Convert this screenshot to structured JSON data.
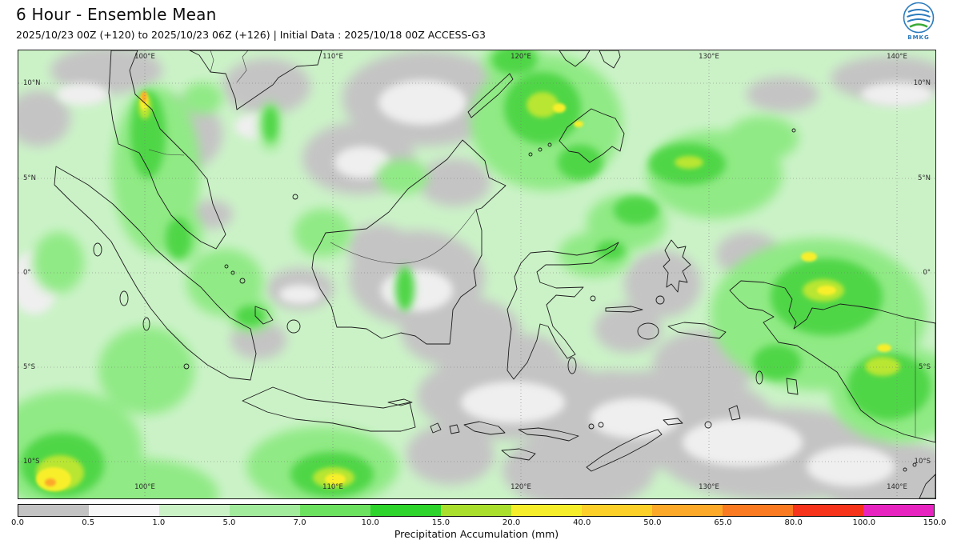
{
  "header": {
    "title": "6 Hour - Ensemble Mean",
    "subtitle": "2025/10/23 00Z (+120) to 2025/10/23 06Z (+126) | Initial Data : 2025/10/18 00Z ACCESS-G3"
  },
  "logo": {
    "caption": "BMKG"
  },
  "map": {
    "lon_labels": [
      "100°E",
      "110°E",
      "120°E",
      "130°E",
      "140°E"
    ],
    "lat_labels": [
      "10°N",
      "5°N",
      "0°",
      "5°S",
      "10°S"
    ]
  },
  "colorbar": {
    "label": "Precipitation Accumulation (mm)",
    "ticks": [
      "0.0",
      "0.5",
      "1.0",
      "5.0",
      "7.0",
      "10.0",
      "15.0",
      "20.0",
      "40.0",
      "50.0",
      "65.0",
      "80.0",
      "100.0",
      "150.0"
    ],
    "segments": [
      {
        "from": "0.0",
        "to": "0.5",
        "color": "#c3c3c3"
      },
      {
        "from": "0.5",
        "to": "1.0",
        "color": "#f7f7f7"
      },
      {
        "from": "1.0",
        "to": "5.0",
        "color": "#cbf2c7"
      },
      {
        "from": "5.0",
        "to": "7.0",
        "color": "#a2eb9d"
      },
      {
        "from": "7.0",
        "to": "10.0",
        "color": "#6ce15f"
      },
      {
        "from": "10.0",
        "to": "15.0",
        "color": "#2ed32b"
      },
      {
        "from": "15.0",
        "to": "20.0",
        "color": "#aadf2e"
      },
      {
        "from": "20.0",
        "to": "40.0",
        "color": "#f6ee2b"
      },
      {
        "from": "40.0",
        "to": "50.0",
        "color": "#fdd029"
      },
      {
        "from": "50.0",
        "to": "65.0",
        "color": "#fca829"
      },
      {
        "from": "65.0",
        "to": "80.0",
        "color": "#fa7a22"
      },
      {
        "from": "80.0",
        "to": "100.0",
        "color": "#f6331b"
      },
      {
        "from": "100.0",
        "to": "150.0",
        "color": "#e824c0"
      }
    ]
  }
}
